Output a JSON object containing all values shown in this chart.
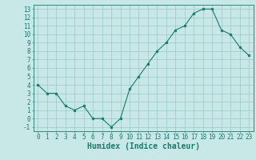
{
  "x": [
    0,
    1,
    2,
    3,
    4,
    5,
    6,
    7,
    8,
    9,
    10,
    11,
    12,
    13,
    14,
    15,
    16,
    17,
    18,
    19,
    20,
    21,
    22,
    23
  ],
  "y": [
    4,
    3,
    3,
    1.5,
    1,
    1.5,
    0,
    0,
    -1,
    0,
    3.5,
    5,
    6.5,
    8,
    9,
    10.5,
    11,
    12.5,
    13,
    13,
    10.5,
    10,
    8.5,
    7.5
  ],
  "line_color": "#1a7a6e",
  "marker_color": "#1a7a6e",
  "bg_color": "#c8e8e8",
  "grid_color": "#8fbfbf",
  "xlabel": "Humidex (Indice chaleur)",
  "ylim": [
    -1.5,
    13.5
  ],
  "xlim": [
    -0.5,
    23.5
  ],
  "yticks": [
    -1,
    0,
    1,
    2,
    3,
    4,
    5,
    6,
    7,
    8,
    9,
    10,
    11,
    12,
    13
  ],
  "xticks": [
    0,
    1,
    2,
    3,
    4,
    5,
    6,
    7,
    8,
    9,
    10,
    11,
    12,
    13,
    14,
    15,
    16,
    17,
    18,
    19,
    20,
    21,
    22,
    23
  ],
  "xtick_labels": [
    "0",
    "1",
    "2",
    "3",
    "4",
    "5",
    "6",
    "7",
    "8",
    "9",
    "10",
    "11",
    "12",
    "13",
    "14",
    "15",
    "16",
    "17",
    "18",
    "19",
    "20",
    "21",
    "22",
    "23"
  ],
  "xlabel_fontsize": 7,
  "tick_fontsize": 5.5,
  "tick_color": "#1a7a6e",
  "axis_color": "#1a7a6e"
}
